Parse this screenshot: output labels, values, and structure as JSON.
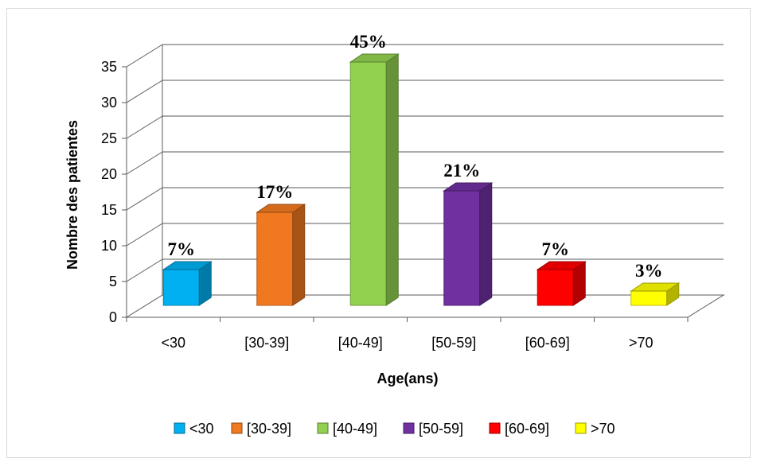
{
  "chart_data": {
    "type": "bar",
    "three_d": true,
    "categories": [
      "<30",
      "[30-39]",
      "[40-49]",
      "[50-59]",
      "[60-69]",
      ">70"
    ],
    "values": [
      5,
      13,
      34,
      16,
      5,
      2
    ],
    "data_labels": [
      "7%",
      "17%",
      "45%",
      "21%",
      "7%",
      "3%"
    ],
    "colors": [
      "#00b0f0",
      "#f07820",
      "#92d050",
      "#7030a0",
      "#ff0000",
      "#ffff00"
    ],
    "title": "",
    "xlabel": "Age(ans)",
    "ylabel": "Nombre des patientes",
    "ylim": [
      0,
      35
    ],
    "yticks": [
      0,
      5,
      10,
      15,
      20,
      25,
      30,
      35
    ],
    "grid": true,
    "legend": {
      "position": "bottom",
      "entries": [
        "<30",
        "[30-39]",
        "[40-49]",
        "[50-59]",
        "[60-69]",
        ">70"
      ]
    }
  }
}
